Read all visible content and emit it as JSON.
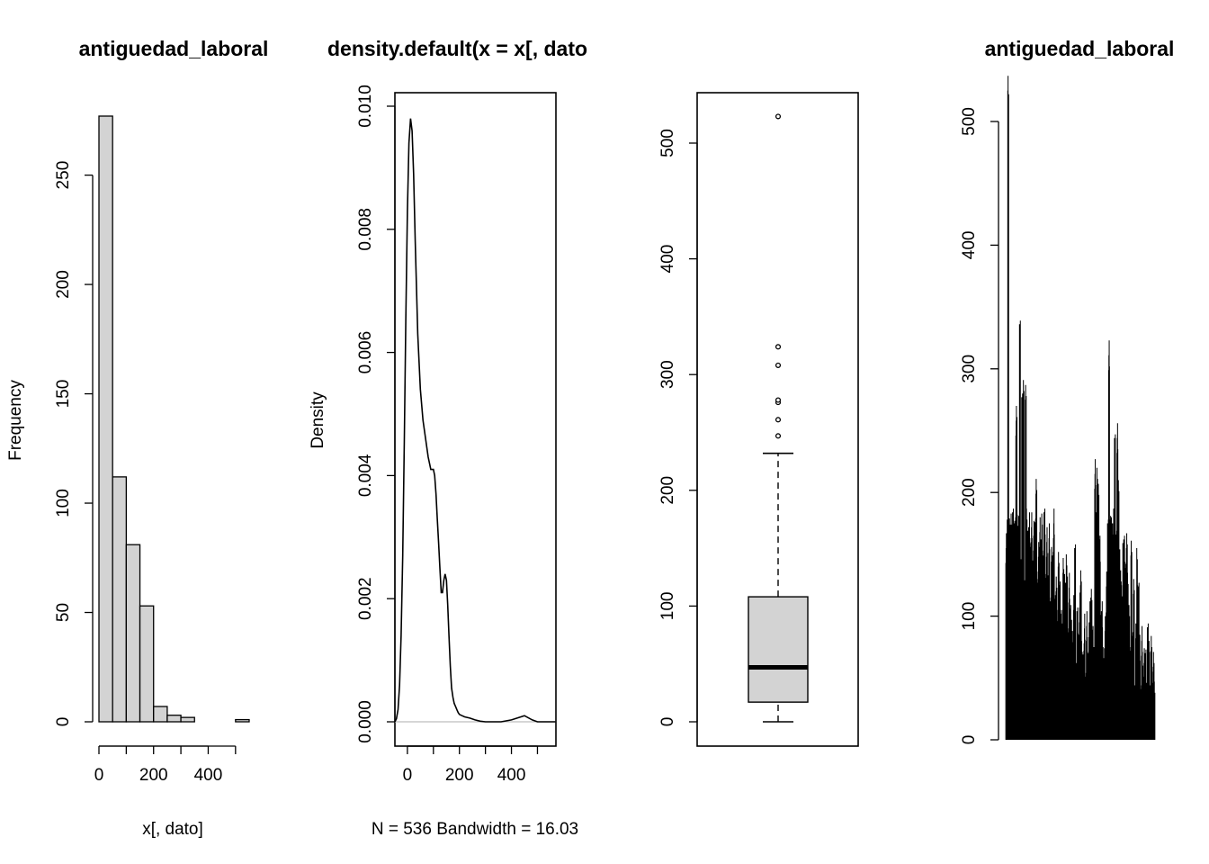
{
  "chart_data": [
    {
      "type": "bar",
      "subtype": "histogram",
      "title": "antiguedad_laboral",
      "xlabel": "x[, dato]",
      "ylabel": "Frequency",
      "bin_edges": [
        0,
        50,
        100,
        150,
        200,
        250,
        300,
        350,
        400,
        450,
        500,
        550
      ],
      "values": [
        277,
        112,
        81,
        53,
        7,
        3,
        2,
        0,
        0,
        0,
        1
      ],
      "xlim": [
        0,
        550
      ],
      "ylim": [
        0,
        277
      ],
      "xticks": [
        "0",
        "200",
        "400"
      ],
      "yticks": [
        "0",
        "50",
        "100",
        "150",
        "200",
        "250"
      ],
      "bar_color": "#d3d3d3"
    },
    {
      "type": "line",
      "title": "density.default(x = x[, dato",
      "ylabel": "Density",
      "xlabel": "N = 536   Bandwidth = 16.03",
      "x": [
        -48,
        -42,
        -36,
        -30,
        -24,
        -18,
        -12,
        -6,
        0,
        6,
        12,
        18,
        24,
        30,
        40,
        50,
        60,
        70,
        80,
        90,
        100,
        105,
        110,
        115,
        120,
        125,
        130,
        135,
        140,
        145,
        150,
        155,
        160,
        165,
        170,
        175,
        180,
        185,
        190,
        195,
        200,
        210,
        220,
        240,
        260,
        280,
        300,
        320,
        340,
        360,
        400,
        450,
        480,
        500,
        520,
        540,
        571
      ],
      "y": [
        0.0,
        5e-05,
        0.0002,
        0.0006,
        0.0014,
        0.0027,
        0.0045,
        0.0065,
        0.0083,
        0.0094,
        0.0098,
        0.0096,
        0.0089,
        0.0078,
        0.0063,
        0.0054,
        0.0049,
        0.0046,
        0.0043,
        0.0041,
        0.0041,
        0.004,
        0.0037,
        0.0033,
        0.0029,
        0.0025,
        0.0021,
        0.0021,
        0.0023,
        0.0024,
        0.0023,
        0.0019,
        0.0014,
        0.0009,
        0.00055,
        0.0004,
        0.0003,
        0.00025,
        0.0002,
        0.00015,
        0.00012,
        0.0001,
        8e-05,
        6e-05,
        3e-05,
        1e-05,
        0.0,
        0.0,
        0.0,
        0.0,
        3e-05,
        0.0001,
        3e-05,
        0.0,
        0.0,
        0.0,
        0.0
      ],
      "xlim": [
        -48,
        571
      ],
      "ylim": [
        -0.0004,
        0.0101
      ],
      "xticks": [
        "0",
        "200",
        "400"
      ],
      "yticks": [
        "0.000",
        "0.002",
        "0.004",
        "0.006",
        "0.008",
        "0.010"
      ]
    },
    {
      "type": "box",
      "min_whisker": 0,
      "q1": 17,
      "median": 47,
      "q3": 108,
      "max_whisker": 232,
      "outliers": [
        247,
        261,
        276,
        278,
        308,
        324,
        523
      ],
      "ylim": [
        -21,
        543
      ],
      "yticks": [
        "0",
        "100",
        "200",
        "300",
        "400",
        "500"
      ],
      "box_color": "#d3d3d3"
    },
    {
      "type": "bar",
      "subtype": "index-plot",
      "title": "antiguedad_laboral",
      "n": 536,
      "ylim": [
        0,
        523
      ],
      "yticks": [
        "0",
        "100",
        "200",
        "300",
        "400",
        "500"
      ],
      "values": [
        158,
        166,
        522,
        170,
        162,
        168,
        175,
        160,
        171,
        258,
        167,
        172,
        324,
        140,
        268,
        276,
        120,
        275,
        172,
        160,
        169,
        150,
        172,
        130,
        168,
        164,
        205,
        118,
        145,
        171,
        150,
        168,
        140,
        172,
        125,
        160,
        118,
        166,
        100,
        150,
        140,
        172,
        108,
        120,
        90,
        143,
        113,
        96,
        82,
        132,
        125,
        115,
        135,
        78,
        120,
        100,
        85,
        73,
        108,
        143,
        56,
        95,
        70,
        110,
        125,
        65,
        60,
        87,
        45,
        92,
        55,
        86,
        100,
        116,
        80,
        60,
        218,
        172,
        205,
        198,
        150,
        95,
        100,
        60,
        65,
        88,
        130,
        166,
        308,
        172,
        168,
        160,
        178,
        232,
        160,
        244,
        195,
        145,
        125,
        110,
        150,
        150,
        133,
        155,
        120,
        100,
        60,
        155,
        75,
        115,
        35,
        82,
        140,
        115,
        70,
        35,
        80,
        45,
        65,
        58,
        40,
        82,
        65,
        35,
        72,
        40,
        62,
        35
      ]
    }
  ]
}
